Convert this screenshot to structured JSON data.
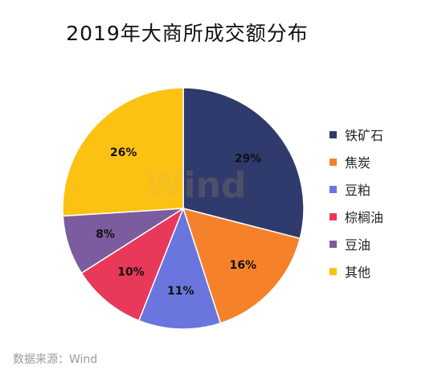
{
  "chart_data": {
    "type": "pie",
    "title": "2019年大商所成交额分布",
    "categories": [
      "铁矿石",
      "焦炭",
      "豆粕",
      "棕榈油",
      "豆油",
      "其他"
    ],
    "values": [
      29,
      16,
      11,
      10,
      8,
      26
    ],
    "labels": [
      "29%",
      "16%",
      "11%",
      "10%",
      "8%",
      "26%"
    ],
    "colors": [
      "#2f3a6d",
      "#f5822a",
      "#6a75dd",
      "#e8395b",
      "#7b5c9e",
      "#fcc213"
    ],
    "start_angle_deg": 0,
    "direction": "clockwise",
    "legend_position": "right"
  },
  "watermark": "Wind",
  "source_note": "数据来源：Wind"
}
